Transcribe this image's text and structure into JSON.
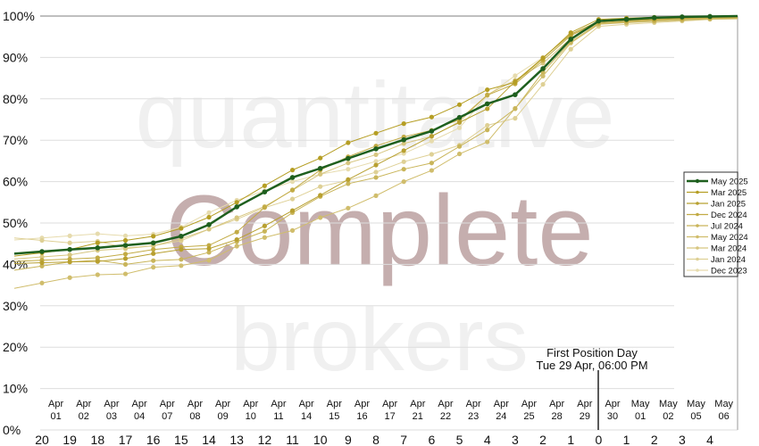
{
  "watermark": {
    "top": "quantitative",
    "middle": "Complete",
    "bottom": "brokers"
  },
  "annotation": {
    "line1": "First Position Day",
    "line2": "Tue 29 Apr, 06:00 PM"
  },
  "chart_data": {
    "type": "line",
    "title": "",
    "xlabel": "",
    "ylabel": "",
    "ylim": [
      0,
      100
    ],
    "yticks": [
      "0%",
      "10%",
      "20%",
      "30%",
      "40%",
      "50%",
      "60%",
      "70%",
      "80%",
      "90%",
      "100%"
    ],
    "grid": true,
    "legend_position": "right",
    "x": [
      "20",
      "19",
      "18",
      "17",
      "16",
      "15",
      "14",
      "13",
      "12",
      "11",
      "10",
      "9",
      "8",
      "7",
      "6",
      "5",
      "4",
      "3",
      "2",
      "1",
      "0",
      "1",
      "2",
      "3",
      "4"
    ],
    "date_labels": [
      [
        "Apr",
        "01"
      ],
      [
        "Apr",
        "02"
      ],
      [
        "Apr",
        "03"
      ],
      [
        "Apr",
        "04"
      ],
      [
        "Apr",
        "07"
      ],
      [
        "Apr",
        "08"
      ],
      [
        "Apr",
        "09"
      ],
      [
        "Apr",
        "10"
      ],
      [
        "Apr",
        "11"
      ],
      [
        "Apr",
        "14"
      ],
      [
        "Apr",
        "15"
      ],
      [
        "Apr",
        "16"
      ],
      [
        "Apr",
        "17"
      ],
      [
        "Apr",
        "21"
      ],
      [
        "Apr",
        "22"
      ],
      [
        "Apr",
        "23"
      ],
      [
        "Apr",
        "24"
      ],
      [
        "Apr",
        "25"
      ],
      [
        "Apr",
        "28"
      ],
      [
        "Apr",
        "29"
      ],
      [
        "Apr",
        "30"
      ],
      [
        "May",
        "01"
      ],
      [
        "May",
        "02"
      ],
      [
        "May",
        "05"
      ],
      [
        "May",
        "06"
      ]
    ],
    "marker_x": "0",
    "series": [
      {
        "name": "May 2025",
        "color": "#1e5f1e",
        "values": [
          43.1,
          43.6,
          44,
          44.6,
          45.2,
          46.8,
          49.6,
          53.9,
          57.5,
          61,
          63.2,
          65.6,
          67.9,
          70.1,
          72.2,
          75.5,
          78.8,
          81,
          87.3,
          94.4,
          98.8,
          99.2,
          99.6,
          99.8,
          99.9
        ]
      },
      {
        "name": "Mar 2025",
        "color": "#b59e24",
        "values": [
          42.8,
          43.6,
          45.2,
          45.8,
          46.8,
          48.7,
          51.4,
          55,
          59,
          62.8,
          65.7,
          69.4,
          71.7,
          74,
          75.6,
          78.6,
          82.2,
          84,
          89.8,
          96,
          99.2,
          99.5,
          99.7,
          99.8,
          99.9
        ]
      },
      {
        "name": "Jan 2025",
        "color": "#b8a030",
        "values": [
          40.4,
          40.6,
          40.7,
          41.4,
          42.6,
          43.6,
          43.8,
          46,
          49.3,
          53,
          56.7,
          60.5,
          64,
          67.5,
          71,
          74.3,
          77.6,
          84.2,
          89.9,
          95.6,
          98.7,
          99,
          99.2,
          99.5,
          99.8
        ]
      },
      {
        "name": "Dec 2024",
        "color": "#c2ab45",
        "values": [
          41,
          41.3,
          41.6,
          42.5,
          43.6,
          44.2,
          44.6,
          47.8,
          53.8,
          58,
          62.8,
          66,
          68.6,
          70.8,
          72.4,
          75,
          80.9,
          83.6,
          89.3,
          95.3,
          98.4,
          98.8,
          99.1,
          99.4,
          99.6
        ]
      },
      {
        "name": "Jul 2024",
        "color": "#c9b55a",
        "values": [
          39.6,
          40.6,
          41,
          40,
          40.9,
          41.2,
          42.9,
          45.5,
          48,
          52.5,
          56.4,
          59.5,
          61,
          63,
          64.5,
          68.5,
          72.5,
          77.6,
          86.5,
          93.8,
          98.2,
          98.5,
          98.8,
          99.1,
          99.4
        ]
      },
      {
        "name": "May 2024",
        "color": "#d0bd6c",
        "values": [
          35.5,
          36.8,
          37.5,
          37.7,
          39.3,
          39.7,
          41,
          44.4,
          46.5,
          48.2,
          51.3,
          53.6,
          56.6,
          60,
          62.7,
          66.7,
          69.6,
          77.7,
          85.5,
          93.5,
          98,
          98.4,
          98.7,
          99,
          99.3
        ]
      },
      {
        "name": "Mar 2024",
        "color": "#d7c680",
        "values": [
          41.8,
          42.3,
          43.4,
          43.8,
          44.5,
          46.2,
          48.5,
          51.3,
          54,
          57.9,
          61.8,
          64.5,
          66.5,
          69.2,
          70.9,
          74.5,
          81,
          84.5,
          88.6,
          94.6,
          98.2,
          98.6,
          98.9,
          99.2,
          99.5
        ]
      },
      {
        "name": "Jan 2024",
        "color": "#ded095",
        "values": [
          45.8,
          45.2,
          45.6,
          44,
          44.5,
          45.7,
          48.5,
          50.9,
          53.7,
          55.8,
          58.8,
          60.3,
          62.3,
          64.8,
          66.6,
          68.8,
          73.6,
          75.3,
          83.5,
          92,
          97.5,
          98,
          98.4,
          98.8,
          99.2
        ]
      },
      {
        "name": "Dec 2023",
        "color": "#e6dbad",
        "values": [
          46.4,
          46.9,
          47.4,
          46.9,
          47.3,
          49,
          52.5,
          55.5,
          57.8,
          60,
          61.8,
          63,
          64.9,
          66.8,
          69.8,
          73,
          80.8,
          85.6,
          90,
          95.6,
          98.7,
          99,
          99.2,
          99.4,
          99.6
        ]
      }
    ]
  }
}
